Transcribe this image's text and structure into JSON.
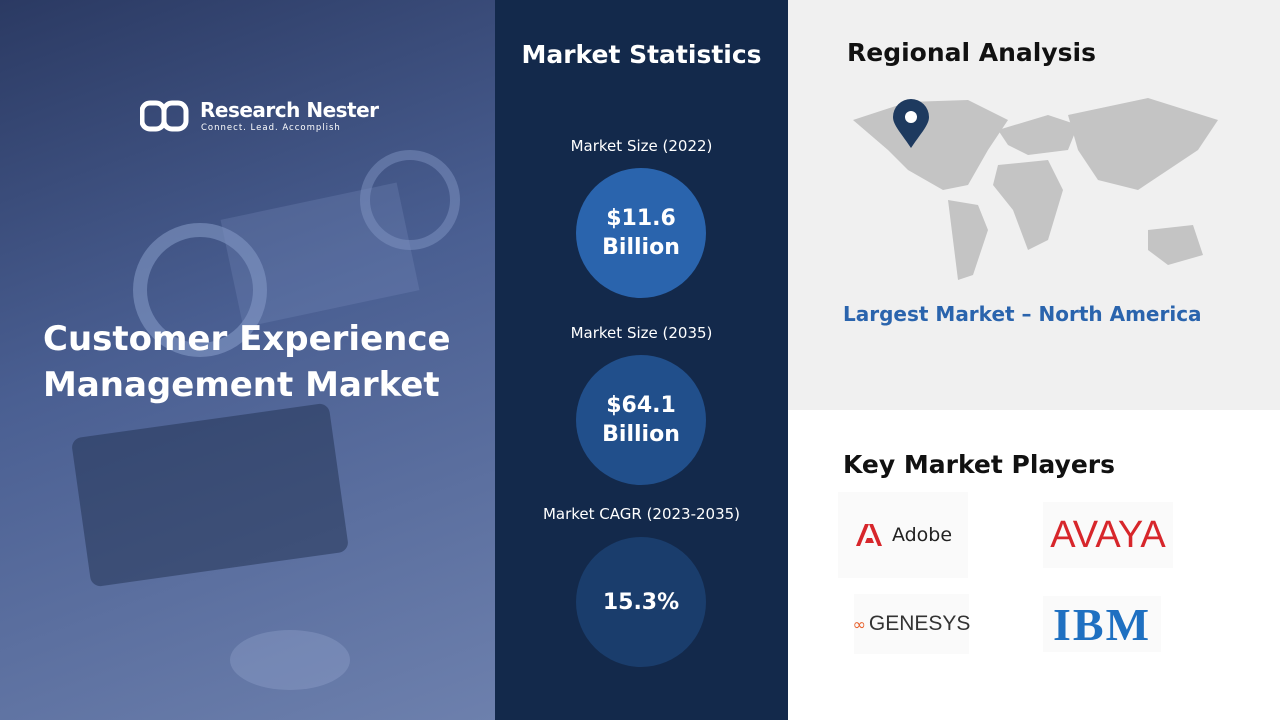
{
  "brand": {
    "name": "Research Nester",
    "tagline": "Connect. Lead. Accomplish"
  },
  "hero": {
    "title_lines": [
      "Customer Experience",
      "Management Market"
    ]
  },
  "statistics": {
    "heading": "Market Statistics",
    "items": [
      {
        "label": "Market Size (2022)",
        "value": "$11.6 Billion"
      },
      {
        "label": "Market Size (2035)",
        "value": "$64.1 Billion"
      },
      {
        "label": "Market CAGR (2023-2035)",
        "value": "15.3%"
      }
    ]
  },
  "regional": {
    "heading": "Regional Analysis",
    "largest_market": "Largest Market – North America"
  },
  "players": {
    "heading": "Key Market Players",
    "names": [
      "Adobe",
      "AVAYA",
      "GENESYS",
      "IBM"
    ]
  }
}
